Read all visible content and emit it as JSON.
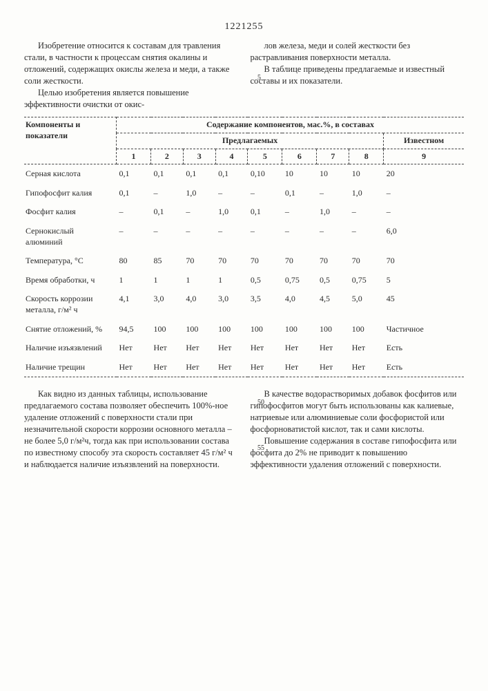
{
  "doc_number": "1221255",
  "left_top_p1": "Изобретение относится к составам для травления стали, в частности к процессам снятия окалины и отложений, содержащих окислы железа и меди, а также соли жесткости.",
  "left_top_p2": "Целью изобретения является повышение эффективности очистки от окис-",
  "right_top_p1": "лов железа, меди и солей жесткости без растравливания поверхности металла.",
  "right_top_p2": "В таблице приведены предлагаемые и известный составы и их показатели.",
  "margin_5": "5",
  "table": {
    "header_label": "Компоненты и показатели",
    "header_main": "Содержание компонентов, мас.%, в составах",
    "header_proposed": "Предлагаемых",
    "header_known": "Известном",
    "cols": [
      "1",
      "2",
      "3",
      "4",
      "5",
      "6",
      "7",
      "8",
      "9"
    ],
    "rows": [
      {
        "label": "Серная кислота",
        "v": [
          "0,1",
          "0,1",
          "0,1",
          "0,1",
          "0,10",
          "10",
          "10",
          "10",
          "20"
        ]
      },
      {
        "label": "Гипофосфит калия",
        "v": [
          "0,1",
          "–",
          "1,0",
          "–",
          "–",
          "0,1",
          "–",
          "1,0",
          "–"
        ]
      },
      {
        "label": "Фосфит калия",
        "v": [
          "–",
          "0,1",
          "–",
          "1,0",
          "0,1",
          "–",
          "1,0",
          "–",
          "–"
        ]
      },
      {
        "label": "Сернокислый алюминий",
        "v": [
          "–",
          "–",
          "–",
          "–",
          "–",
          "–",
          "–",
          "–",
          "6,0"
        ]
      },
      {
        "label": "Температура, °С",
        "v": [
          "80",
          "85",
          "70",
          "70",
          "70",
          "70",
          "70",
          "70",
          "70"
        ]
      },
      {
        "label": "Время обработки, ч",
        "v": [
          "1",
          "1",
          "1",
          "1",
          "0,5",
          "0,75",
          "0,5",
          "0,75",
          "5"
        ]
      },
      {
        "label": "Скорость коррозии металла, г/м² ч",
        "v": [
          "4,1",
          "3,0",
          "4,0",
          "3,0",
          "3,5",
          "4,0",
          "4,5",
          "5,0",
          "45"
        ]
      },
      {
        "label": "Снятие отложений, %",
        "v": [
          "94,5",
          "100",
          "100",
          "100",
          "100",
          "100",
          "100",
          "100",
          "Частичное"
        ]
      },
      {
        "label": "Наличие изъязвлений",
        "v": [
          "Нет",
          "Нет",
          "Нет",
          "Нет",
          "Нет",
          "Нет",
          "Нет",
          "Нет",
          "Есть"
        ]
      },
      {
        "label": "Наличие трещин",
        "v": [
          "Нет",
          "Нет",
          "Нет",
          "Нет",
          "Нет",
          "Нет",
          "Нет",
          "Нет",
          "Есть"
        ]
      }
    ]
  },
  "left_bot_p1": "Как видно из данных таблицы, использование предлагаемого состава позволяет обеспечить 100%-ное удаление отложений с поверхности стали при незначительной скорости коррозии основного металла – не более 5,0 г/м²ч, тогда как при использовании состава по известному способу эта скорость составляет 45 г/м² ч и наблюдается наличие изъязвлений на поверхности.",
  "right_bot_p1": "В качестве водорастворимых добавок фосфитов или гипофосфитов могут быть использованы как калиевые, натриевые или алюминиевые соли фосфористой или фосфорноватистой кислот, так и сами кислоты.",
  "right_bot_p2": "Повышение содержания в составе гипофосфита или фосфита до 2% не приводит к повышению эффективности удаления отложений с поверхности.",
  "margin_50": "50",
  "margin_55": "55"
}
